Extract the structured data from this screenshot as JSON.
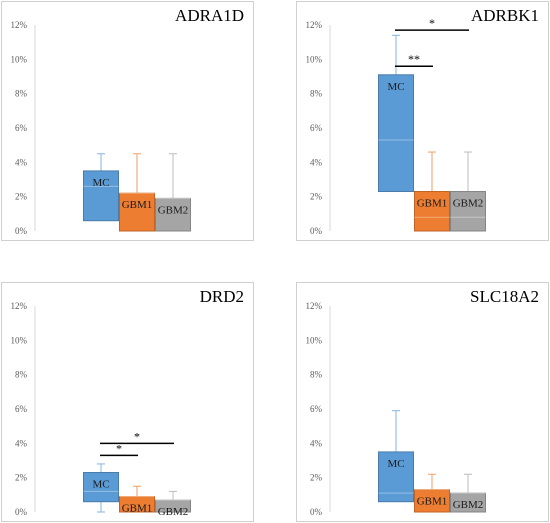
{
  "chart_data": [
    {
      "type": "box",
      "title": "ADRA1D",
      "yticks": [
        "0%",
        "2%",
        "4%",
        "6%",
        "8%",
        "10%",
        "12%"
      ],
      "ylim": [
        0,
        12
      ],
      "groups": [
        {
          "label": "MC",
          "color": "#5b9bd5",
          "whisker_low": 0.6,
          "q1": 0.6,
          "median": 2.6,
          "q3": 3.5,
          "whisker_high": 4.5
        },
        {
          "label": "GBM1",
          "color": "#ed7d31",
          "whisker_low": 0.0,
          "q1": 0.0,
          "median": 2.2,
          "q3": 2.2,
          "whisker_high": 4.5
        },
        {
          "label": "GBM2",
          "color": "#a5a5a5",
          "whisker_low": 0.0,
          "q1": 0.0,
          "median": 1.9,
          "q3": 1.9,
          "whisker_high": 4.5
        }
      ],
      "significance": []
    },
    {
      "type": "box",
      "title": "ADRBK1",
      "yticks": [
        "0%",
        "2%",
        "4%",
        "6%",
        "8%",
        "10%",
        "12%"
      ],
      "ylim": [
        0,
        12
      ],
      "groups": [
        {
          "label": "MC",
          "color": "#5b9bd5",
          "whisker_low": 2.3,
          "q1": 2.3,
          "median": 5.3,
          "q3": 9.1,
          "whisker_high": 11.4
        },
        {
          "label": "GBM1",
          "color": "#ed7d31",
          "whisker_low": 0.0,
          "q1": 0.0,
          "median": 0.8,
          "q3": 2.3,
          "whisker_high": 4.6
        },
        {
          "label": "GBM2",
          "color": "#a5a5a5",
          "whisker_low": 0.0,
          "q1": 0.0,
          "median": 0.8,
          "q3": 2.3,
          "whisker_high": 4.6
        }
      ],
      "significance": [
        {
          "from": 0,
          "to": 2,
          "value": 11.7,
          "label": "*"
        },
        {
          "from": 0,
          "to": 1,
          "value": 9.6,
          "label": "**"
        }
      ]
    },
    {
      "type": "box",
      "title": "DRD2",
      "yticks": [
        "0%",
        "2%",
        "4%",
        "6%",
        "8%",
        "10%",
        "12%"
      ],
      "ylim": [
        0,
        12
      ],
      "groups": [
        {
          "label": "MC",
          "color": "#5b9bd5",
          "whisker_low": 0.0,
          "q1": 0.6,
          "median": 1.2,
          "q3": 2.3,
          "whisker_high": 2.8
        },
        {
          "label": "GBM1",
          "color": "#ed7d31",
          "whisker_low": 0.0,
          "q1": 0.0,
          "median": 0.9,
          "q3": 0.9,
          "whisker_high": 1.5
        },
        {
          "label": "GBM2",
          "color": "#a5a5a5",
          "whisker_low": 0.0,
          "q1": 0.0,
          "median": 0.7,
          "q3": 0.7,
          "whisker_high": 1.2
        }
      ],
      "significance": [
        {
          "from": 0,
          "to": 2,
          "value": 4.0,
          "label": "*"
        },
        {
          "from": 0,
          "to": 1,
          "value": 3.3,
          "label": "*"
        }
      ]
    },
    {
      "type": "box",
      "title": "SLC18A2",
      "yticks": [
        "0%",
        "2%",
        "4%",
        "6%",
        "8%",
        "10%",
        "12%"
      ],
      "ylim": [
        0,
        12
      ],
      "groups": [
        {
          "label": "MC",
          "color": "#5b9bd5",
          "whisker_low": 0.6,
          "q1": 0.6,
          "median": 1.1,
          "q3": 3.5,
          "whisker_high": 5.9
        },
        {
          "label": "GBM1",
          "color": "#ed7d31",
          "whisker_low": 0.0,
          "q1": 0.0,
          "median": 1.3,
          "q3": 1.3,
          "whisker_high": 2.2
        },
        {
          "label": "GBM2",
          "color": "#a5a5a5",
          "whisker_low": 0.0,
          "q1": 0.0,
          "median": 1.1,
          "q3": 1.1,
          "whisker_high": 2.2
        }
      ],
      "significance": []
    }
  ]
}
